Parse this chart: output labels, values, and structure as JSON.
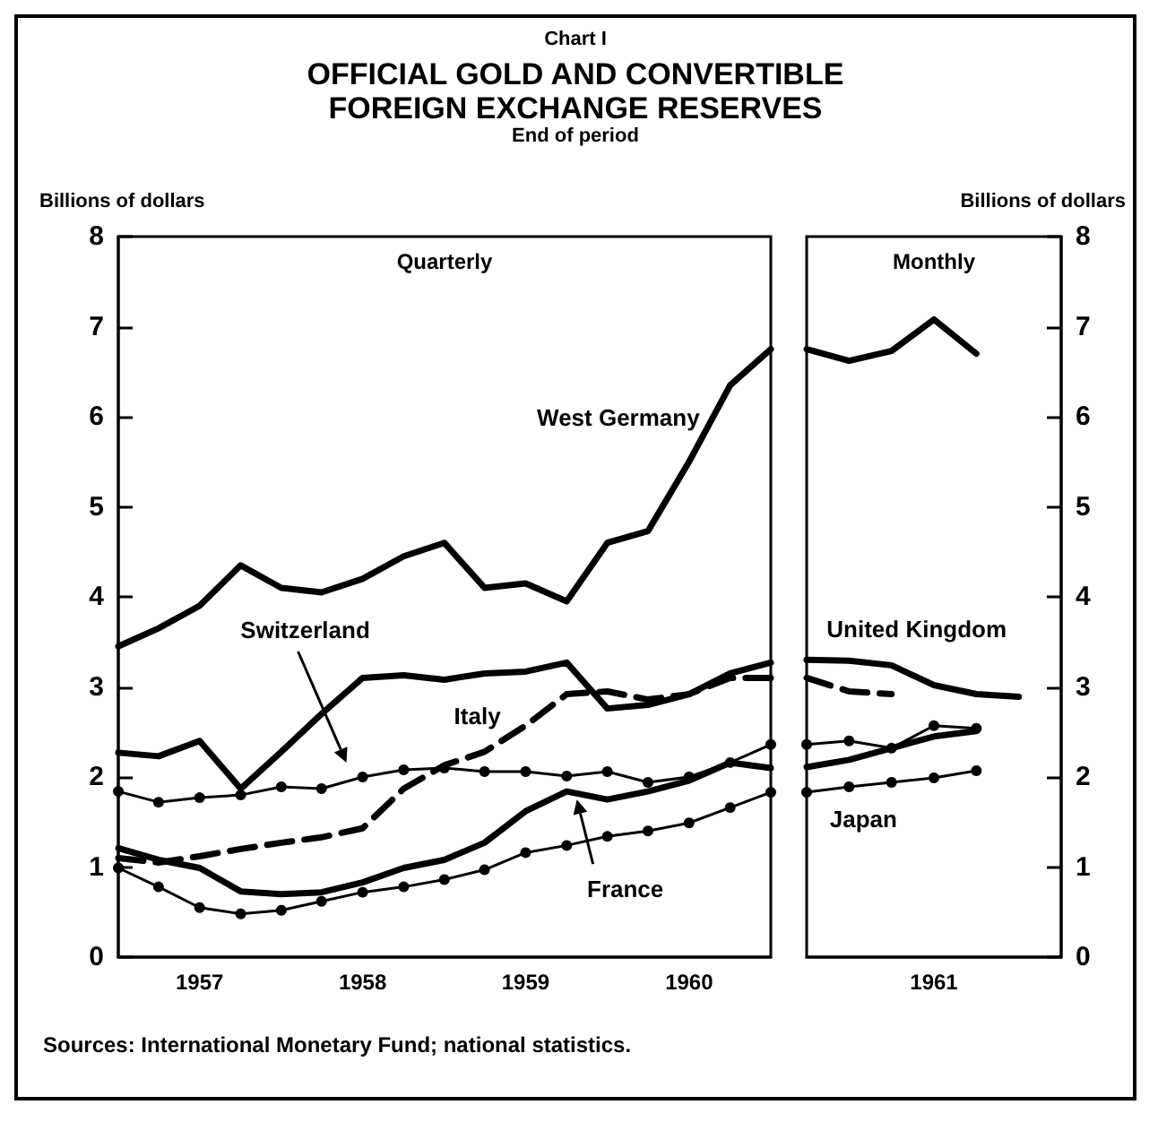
{
  "chart_data": [
    {
      "type": "line",
      "title": "OFFICIAL GOLD AND CONVERTIBLE FOREIGN EXCHANGE RESERVES",
      "subtitle": "End of period",
      "ylabel": "Billions of dollars",
      "annotations": [
        "Chart I",
        "Quarterly",
        "Sources: International Monetary Fund; national statistics."
      ],
      "x": [
        "1956-12",
        "1957-03",
        "1957-06",
        "1957-09",
        "1957-12",
        "1958-03",
        "1958-06",
        "1958-09",
        "1958-12",
        "1959-03",
        "1959-06",
        "1959-09",
        "1959-12",
        "1960-03",
        "1960-06",
        "1960-09",
        "1960-12"
      ],
      "xlim": [
        "1956-12",
        "1960-12"
      ],
      "xticks": [
        {
          "value": "1957-06",
          "label": "1957"
        },
        {
          "value": "1958-06",
          "label": "1958"
        },
        {
          "value": "1959-06",
          "label": "1959"
        },
        {
          "value": "1960-06",
          "label": "1960"
        }
      ],
      "ylim": [
        0,
        8
      ],
      "yticks": [
        0,
        1,
        2,
        3,
        4,
        5,
        6,
        7,
        8
      ],
      "grid": false,
      "marker": "none",
      "line_style": "solid",
      "series": [
        {
          "name": "West Germany",
          "color": "#000000",
          "values": [
            3.45,
            3.65,
            3.9,
            4.35,
            4.1,
            4.05,
            4.2,
            4.45,
            4.6,
            4.1,
            4.15,
            3.95,
            4.6,
            4.73,
            5.5,
            6.35,
            6.75
          ]
        },
        {
          "color": "#000000",
          "values": [
            2.27,
            2.23,
            2.4,
            1.87,
            2.28,
            2.7,
            3.1,
            3.13,
            3.08,
            3.15,
            3.17,
            3.27,
            2.76,
            2.8,
            2.92,
            3.15,
            3.27
          ]
        },
        {
          "name": "Italy",
          "color": "#000000",
          "line_style": "dashed",
          "values": [
            1.1,
            1.05,
            1.12,
            1.2,
            1.27,
            1.33,
            1.43,
            1.87,
            2.13,
            2.28,
            2.57,
            2.92,
            2.95,
            2.86,
            2.92,
            3.1,
            3.1
          ]
        },
        {
          "name": "Switzerland",
          "color": "#000000",
          "marker": "circle",
          "values": [
            1.84,
            1.72,
            1.77,
            1.8,
            1.89,
            1.87,
            2.0,
            2.08,
            2.1,
            2.06,
            2.06,
            2.01,
            2.06,
            1.94,
            2.0,
            2.16,
            2.36
          ]
        },
        {
          "name": "France",
          "color": "#000000",
          "values": [
            1.21,
            1.08,
            0.99,
            0.73,
            0.7,
            0.72,
            0.83,
            0.99,
            1.08,
            1.27,
            1.62,
            1.84,
            1.75,
            1.84,
            1.96,
            2.16,
            2.1
          ]
        },
        {
          "color": "#000000",
          "marker": "circle",
          "values": [
            0.99,
            0.78,
            0.55,
            0.48,
            0.52,
            0.62,
            0.72,
            0.78,
            0.86,
            0.97,
            1.16,
            1.24,
            1.34,
            1.4,
            1.49,
            1.66,
            1.83
          ]
        }
      ]
    },
    {
      "type": "line",
      "ylabel": "Billions of dollars",
      "annotations": [
        "Monthly"
      ],
      "categories": [
        null,
        null,
        null,
        "1961",
        null,
        null,
        null
      ],
      "ylim": [
        0,
        8
      ],
      "yticks": [
        0,
        1,
        2,
        3,
        4,
        5,
        6,
        7,
        8
      ],
      "grid": false,
      "marker": "none",
      "line_style": "solid",
      "series": [
        {
          "color": "#000000",
          "values": [
            6.75,
            6.62,
            6.73,
            7.08,
            6.7,
            null,
            null
          ]
        },
        {
          "name": "United Kingdom",
          "color": "#000000",
          "values": [
            3.3,
            3.29,
            3.24,
            3.02,
            2.92,
            2.89,
            null
          ]
        },
        {
          "color": "#000000",
          "line_style": "dashed",
          "values": [
            3.1,
            2.95,
            2.92,
            null,
            null,
            null,
            null
          ]
        },
        {
          "color": "#000000",
          "marker": "circle",
          "values": [
            2.36,
            2.4,
            2.32,
            2.57,
            2.54,
            null,
            null
          ]
        },
        {
          "color": "#000000",
          "values": [
            2.11,
            2.19,
            2.32,
            2.45,
            2.51,
            null,
            null
          ]
        },
        {
          "name": "Japan",
          "color": "#000000",
          "marker": "circle",
          "values": [
            1.83,
            1.89,
            1.94,
            1.99,
            2.07,
            null,
            null
          ]
        }
      ]
    }
  ]
}
